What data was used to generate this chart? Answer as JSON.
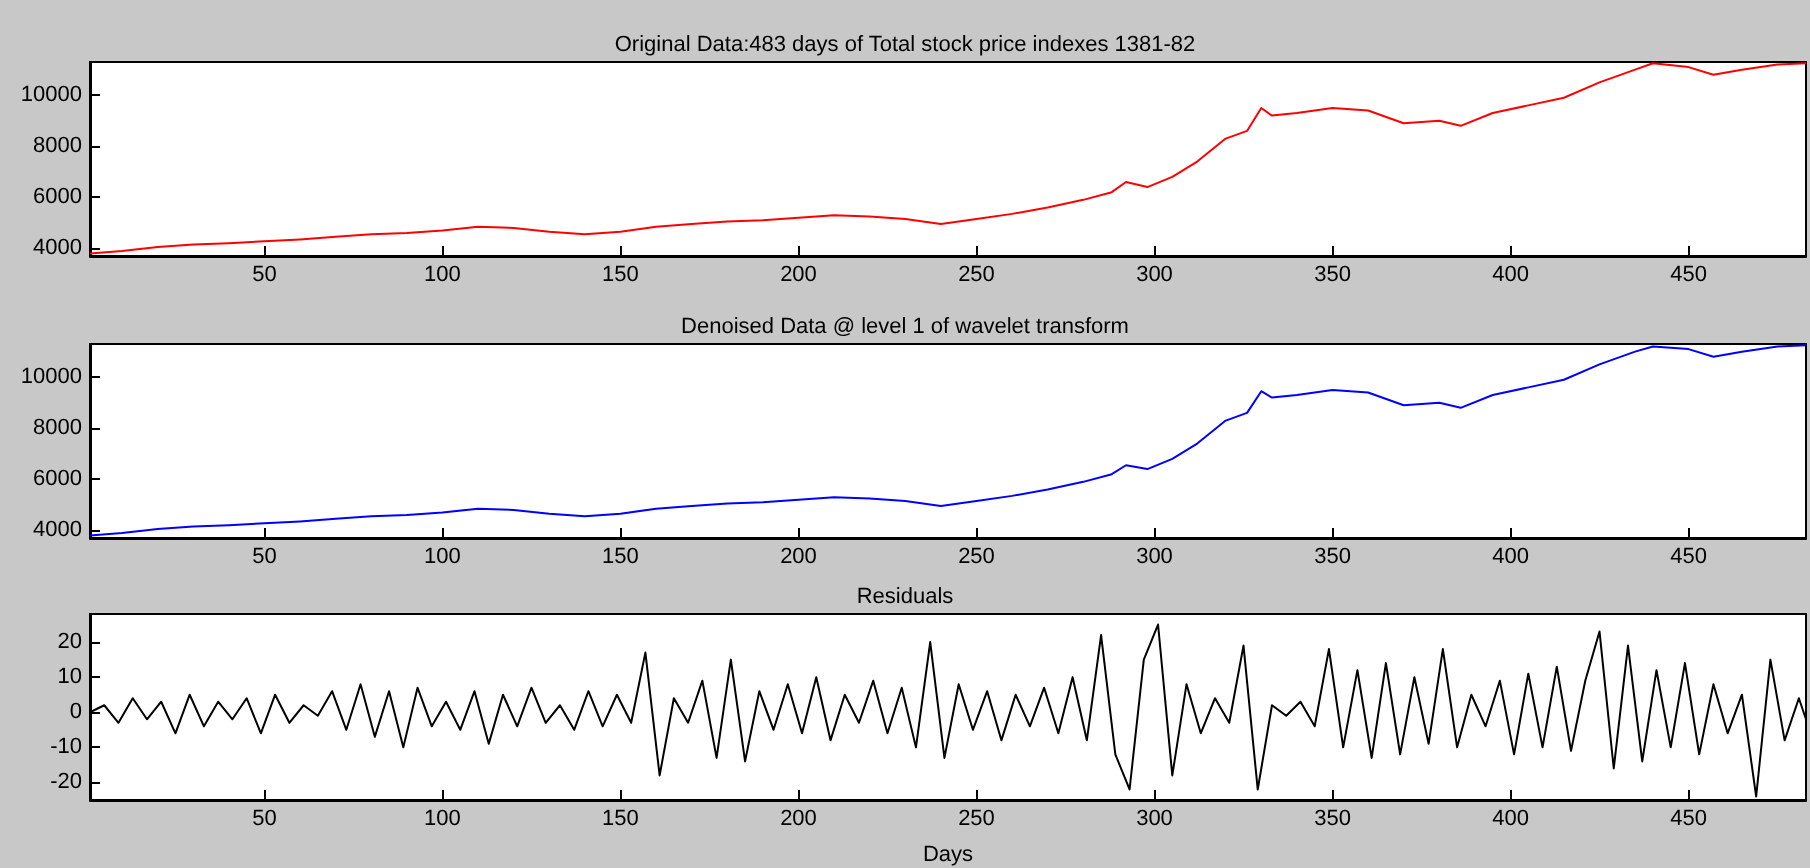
{
  "chart_data": [
    {
      "type": "line",
      "title": "Original Data:483 days of Total stock price indexes 1381-82",
      "xlim": [
        1,
        483
      ],
      "xticks": [
        50,
        100,
        150,
        200,
        250,
        300,
        350,
        400,
        450
      ],
      "ylim": [
        3700,
        11300
      ],
      "yticks": [
        4000,
        6000,
        8000,
        10000
      ],
      "marker": "none",
      "series": [
        {
          "color": "#ff0000",
          "x": [
            1,
            10,
            20,
            30,
            40,
            50,
            60,
            70,
            80,
            90,
            100,
            110,
            120,
            130,
            140,
            150,
            160,
            170,
            180,
            190,
            200,
            210,
            220,
            230,
            240,
            250,
            260,
            270,
            280,
            288,
            292,
            298,
            305,
            312,
            320,
            326,
            330,
            333,
            340,
            350,
            360,
            370,
            380,
            386,
            395,
            405,
            415,
            425,
            435,
            440,
            450,
            457,
            465,
            475,
            483
          ],
          "values": [
            3800,
            3900,
            4050,
            4150,
            4200,
            4280,
            4350,
            4450,
            4550,
            4600,
            4700,
            4850,
            4800,
            4650,
            4550,
            4650,
            4850,
            4950,
            5050,
            5100,
            5200,
            5300,
            5250,
            5150,
            4950,
            5150,
            5350,
            5600,
            5900,
            6200,
            6600,
            6400,
            6800,
            7400,
            8300,
            8600,
            9500,
            9200,
            9300,
            9500,
            9400,
            8900,
            9000,
            8800,
            9300,
            9600,
            9900,
            10500,
            11000,
            11250,
            11100,
            10800,
            11000,
            11200,
            11250
          ]
        }
      ]
    },
    {
      "type": "line",
      "title": "Denoised Data @ level 1 of wavelet transform",
      "xlim": [
        1,
        483
      ],
      "xticks": [
        50,
        100,
        150,
        200,
        250,
        300,
        350,
        400,
        450
      ],
      "ylim": [
        3700,
        11300
      ],
      "yticks": [
        4000,
        6000,
        8000,
        10000
      ],
      "marker": "none",
      "series": [
        {
          "color": "#0000ff",
          "x": [
            1,
            10,
            20,
            30,
            40,
            50,
            60,
            70,
            80,
            90,
            100,
            110,
            120,
            130,
            140,
            150,
            160,
            170,
            180,
            190,
            200,
            210,
            220,
            230,
            240,
            250,
            260,
            270,
            280,
            288,
            292,
            298,
            305,
            312,
            320,
            326,
            330,
            333,
            340,
            350,
            360,
            370,
            380,
            386,
            395,
            405,
            415,
            425,
            435,
            440,
            450,
            457,
            465,
            475,
            483
          ],
          "values": [
            3800,
            3900,
            4050,
            4150,
            4200,
            4280,
            4350,
            4450,
            4550,
            4600,
            4700,
            4850,
            4800,
            4650,
            4550,
            4650,
            4850,
            4950,
            5050,
            5100,
            5200,
            5300,
            5250,
            5150,
            4950,
            5150,
            5350,
            5600,
            5900,
            6200,
            6550,
            6400,
            6800,
            7400,
            8300,
            8600,
            9450,
            9200,
            9300,
            9500,
            9400,
            8900,
            9000,
            8800,
            9300,
            9600,
            9900,
            10500,
            11000,
            11200,
            11100,
            10800,
            11000,
            11200,
            11250
          ]
        }
      ]
    },
    {
      "type": "line",
      "title": "Residuals",
      "xlabel": "Days",
      "xlim": [
        1,
        483
      ],
      "xticks": [
        50,
        100,
        150,
        200,
        250,
        300,
        350,
        400,
        450
      ],
      "ylim": [
        -25,
        28
      ],
      "yticks": [
        -20,
        -10,
        0,
        10,
        20
      ],
      "marker": "none",
      "series": [
        {
          "color": "#000000",
          "x": [
            1,
            5,
            9,
            13,
            17,
            21,
            25,
            29,
            33,
            37,
            41,
            45,
            49,
            53,
            57,
            61,
            65,
            69,
            73,
            77,
            81,
            85,
            89,
            93,
            97,
            101,
            105,
            109,
            113,
            117,
            121,
            125,
            129,
            133,
            137,
            141,
            145,
            149,
            153,
            157,
            161,
            165,
            169,
            173,
            177,
            181,
            185,
            189,
            193,
            197,
            201,
            205,
            209,
            213,
            217,
            221,
            225,
            229,
            233,
            237,
            241,
            245,
            249,
            253,
            257,
            261,
            265,
            269,
            273,
            277,
            281,
            285,
            289,
            293,
            297,
            301,
            305,
            309,
            313,
            317,
            321,
            325,
            329,
            333,
            337,
            341,
            345,
            349,
            353,
            357,
            361,
            365,
            369,
            373,
            377,
            381,
            385,
            389,
            393,
            397,
            401,
            405,
            409,
            413,
            417,
            421,
            425,
            429,
            433,
            437,
            441,
            445,
            449,
            453,
            457,
            461,
            465,
            469,
            473,
            477,
            481,
            483
          ],
          "values": [
            0,
            2,
            -3,
            4,
            -2,
            3,
            -6,
            5,
            -4,
            3,
            -2,
            4,
            -6,
            5,
            -3,
            2,
            -1,
            6,
            -5,
            8,
            -7,
            6,
            -10,
            7,
            -4,
            3,
            -5,
            6,
            -9,
            5,
            -4,
            7,
            -3,
            2,
            -5,
            6,
            -4,
            5,
            -3,
            17,
            -18,
            4,
            -3,
            9,
            -13,
            15,
            -14,
            6,
            -5,
            8,
            -6,
            10,
            -8,
            5,
            -3,
            9,
            -6,
            7,
            -10,
            20,
            -13,
            8,
            -5,
            6,
            -8,
            5,
            -4,
            7,
            -6,
            10,
            -8,
            22,
            -12,
            -22,
            15,
            25,
            -18,
            8,
            -6,
            4,
            -3,
            19,
            -22,
            2,
            -1,
            3,
            -4,
            18,
            -10,
            12,
            -13,
            14,
            -12,
            10,
            -9,
            18,
            -10,
            5,
            -4,
            9,
            -12,
            11,
            -10,
            13,
            -11,
            9,
            23,
            -16,
            19,
            -14,
            12,
            -10,
            14,
            -12,
            8,
            -6,
            5,
            -24,
            15,
            -8,
            4,
            -2
          ]
        }
      ]
    }
  ]
}
